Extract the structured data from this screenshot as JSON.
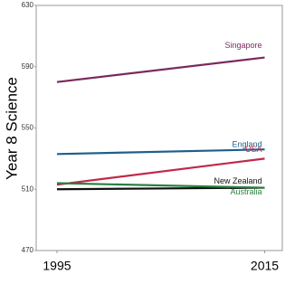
{
  "chart_data": {
    "type": "line",
    "y_label": "Year 8 Science",
    "x": [
      1995,
      2015
    ],
    "xlim": [
      1993,
      2016.7
    ],
    "xticks": [
      1995,
      2015
    ],
    "ylim": [
      470,
      630
    ],
    "yticks": [
      470,
      510,
      550,
      590,
      630
    ],
    "series": [
      {
        "name": "Singapore",
        "color": "#7a2a5c",
        "values": [
          580,
          596
        ]
      },
      {
        "name": "England",
        "color": "#1f5f8b",
        "values": [
          533,
          536
        ]
      },
      {
        "name": "USA",
        "color": "#c0284a",
        "values": [
          513,
          530
        ]
      },
      {
        "name": "New Zealand",
        "color": "#111111",
        "values": [
          510,
          511
        ]
      },
      {
        "name": "Australia",
        "color": "#2a8040",
        "values": [
          514,
          511
        ]
      }
    ]
  }
}
